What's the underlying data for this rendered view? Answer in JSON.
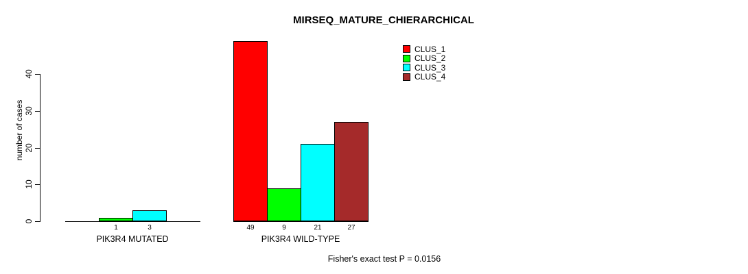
{
  "title": "MIRSEQ_MATURE_CHIERARCHICAL",
  "y_axis": {
    "label": "number of cases",
    "ticks": [
      0,
      10,
      20,
      30,
      40
    ]
  },
  "legend": {
    "items": [
      {
        "label": "CLUS_1",
        "color": "#ff0000"
      },
      {
        "label": "CLUS_2",
        "color": "#00ff00"
      },
      {
        "label": "CLUS_3",
        "color": "#00ffff"
      },
      {
        "label": "CLUS_4",
        "color": "#a52a2a"
      }
    ]
  },
  "footer": "Fisher's exact test P = 0.0156",
  "chart_data": {
    "type": "bar",
    "title": "MIRSEQ_MATURE_CHIERARCHICAL",
    "xlabel": "",
    "ylabel": "number of cases",
    "ylim": [
      0,
      40
    ],
    "grid": false,
    "legend_position": "top-right",
    "series_names": [
      "CLUS_1",
      "CLUS_2",
      "CLUS_3",
      "CLUS_4"
    ],
    "series_colors": [
      "#ff0000",
      "#00ff00",
      "#00ffff",
      "#a52a2a"
    ],
    "groups": [
      {
        "label": "PIK3R4 MUTATED",
        "values": [
          0,
          1,
          3,
          0
        ],
        "value_labels": [
          "",
          "1",
          "3",
          ""
        ]
      },
      {
        "label": "PIK3R4 WILD-TYPE",
        "values": [
          49,
          9,
          21,
          27
        ],
        "value_labels": [
          "49",
          "9",
          "21",
          "27"
        ]
      }
    ],
    "annotation": "Fisher's exact test P = 0.0156"
  }
}
